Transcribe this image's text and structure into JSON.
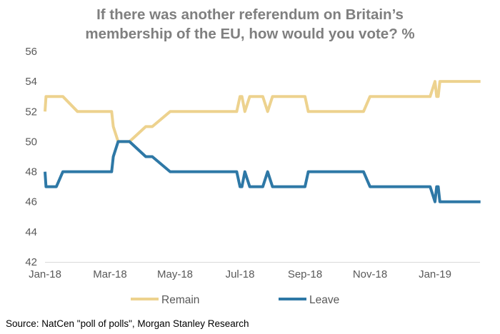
{
  "chart_data": {
    "type": "line",
    "title_lines": [
      "If there was another referendum on Britain’s",
      "membership of the EU, how would you vote? %"
    ],
    "x_tick_labels": [
      "Jan-18",
      "Mar-18",
      "May-18",
      "Jul-18",
      "Sep-18",
      "Nov-18",
      "Jan-19"
    ],
    "x_tick_months": [
      0,
      2,
      4,
      6,
      8,
      10,
      12
    ],
    "x_range": [
      0,
      13.5
    ],
    "y_ticks": [
      42,
      44,
      46,
      48,
      50,
      52,
      54,
      56
    ],
    "ylim": [
      42,
      56
    ],
    "series": [
      {
        "name": "Remain",
        "color": "#edd28e",
        "x": [
          0,
          0.03,
          0.08,
          0.35,
          0.55,
          1.0,
          2.0,
          2.05,
          2.1,
          2.25,
          2.4,
          2.6,
          3.1,
          3.3,
          3.85,
          4.3,
          5.9,
          6.0,
          6.06,
          6.15,
          6.3,
          6.45,
          6.7,
          6.85,
          7.0,
          7.1,
          7.3,
          7.5,
          8.0,
          8.1,
          8.3,
          9.8,
          10.0,
          10.2,
          11.85,
          12.0,
          12.05,
          12.1,
          12.15,
          12.2,
          13.4
        ],
        "values": [
          52,
          53,
          53,
          53,
          53,
          52,
          52,
          52,
          51,
          50,
          50,
          50,
          51,
          51,
          52,
          52,
          52,
          53,
          53,
          52,
          53,
          53,
          53,
          52,
          53,
          53,
          53,
          53,
          53,
          52,
          52,
          52,
          53,
          53,
          53,
          54,
          53,
          53,
          54,
          54,
          54
        ]
      },
      {
        "name": "Leave",
        "color": "#2e78a6",
        "x": [
          0,
          0.03,
          0.08,
          0.35,
          0.55,
          1.0,
          2.0,
          2.05,
          2.1,
          2.25,
          2.4,
          2.6,
          3.1,
          3.3,
          3.85,
          4.3,
          5.9,
          6.0,
          6.06,
          6.15,
          6.3,
          6.45,
          6.7,
          6.85,
          7.0,
          7.1,
          7.3,
          7.5,
          8.0,
          8.1,
          8.3,
          9.8,
          10.0,
          10.2,
          11.85,
          12.0,
          12.05,
          12.1,
          12.15,
          12.2,
          13.4
        ],
        "values": [
          48,
          47,
          47,
          47,
          48,
          48,
          48,
          48,
          49,
          50,
          50,
          50,
          49,
          49,
          48,
          48,
          48,
          47,
          47,
          48,
          47,
          47,
          47,
          48,
          47,
          47,
          47,
          47,
          47,
          48,
          48,
          48,
          47,
          47,
          47,
          46,
          47,
          47,
          46,
          46,
          46
        ]
      }
    ],
    "legend": [
      {
        "label": "Remain",
        "color": "#edd28e"
      },
      {
        "label": "Leave",
        "color": "#2e78a6"
      }
    ],
    "legend_position": "bottom",
    "grid": false,
    "source": "Source: NatCen \"poll of polls\", Morgan Stanley Research"
  }
}
